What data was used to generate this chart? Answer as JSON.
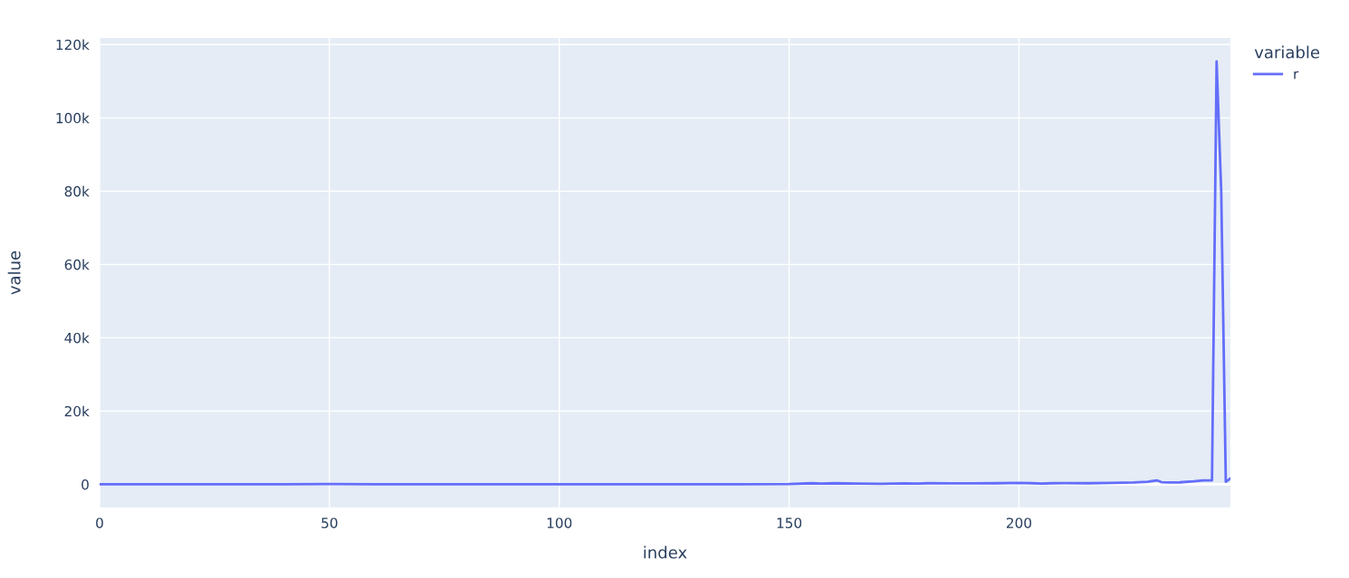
{
  "chart_data": {
    "type": "line",
    "xlabel": "index",
    "ylabel": "value",
    "legend_title": "variable",
    "legend": "top right",
    "grid": true,
    "xlim": [
      0,
      246
    ],
    "xticks": [
      0,
      50,
      100,
      150,
      200
    ],
    "ylim": [
      -6300,
      121800
    ],
    "yticks": [
      0,
      {
        "value": 20000,
        "label": "20k"
      },
      {
        "value": 40000,
        "label": "40k"
      },
      {
        "value": 60000,
        "label": "60k"
      },
      {
        "value": 80000,
        "label": "80k"
      },
      {
        "value": 100000,
        "label": "100k"
      },
      {
        "value": 120000,
        "label": "120k"
      }
    ],
    "series": [
      {
        "name": "r",
        "color": "#636efa",
        "x": [
          0,
          10,
          20,
          30,
          40,
          50,
          60,
          70,
          80,
          90,
          100,
          110,
          120,
          130,
          140,
          150,
          155,
          157,
          160,
          165,
          170,
          175,
          178,
          180,
          185,
          190,
          195,
          200,
          203,
          205,
          207,
          210,
          215,
          220,
          225,
          228,
          230,
          231,
          233,
          235,
          238,
          240,
          242,
          243,
          244,
          245,
          246
        ],
        "values": [
          0,
          0,
          0,
          0,
          0,
          100,
          0,
          0,
          0,
          0,
          0,
          0,
          0,
          50,
          50,
          100,
          300,
          200,
          300,
          200,
          150,
          250,
          200,
          300,
          250,
          250,
          300,
          400,
          300,
          200,
          300,
          350,
          300,
          400,
          500,
          700,
          1100,
          600,
          500,
          550,
          800,
          1100,
          1100,
          115400,
          80200,
          700,
          1600
        ]
      }
    ]
  }
}
